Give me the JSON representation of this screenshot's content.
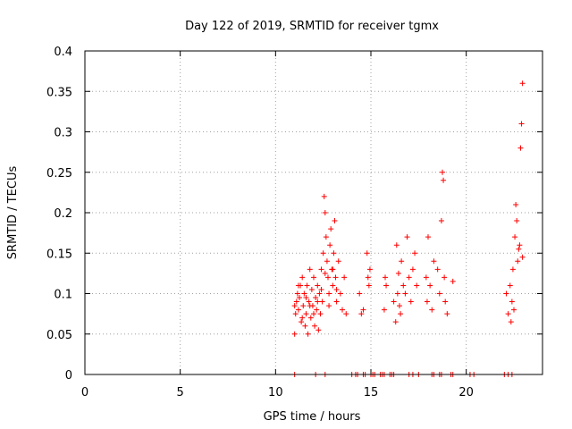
{
  "chart_data": {
    "type": "scatter",
    "title": "Day 122 of 2019, SRMTID for receiver tgmx",
    "xlabel": "GPS time / hours",
    "ylabel": "SRMTID / TECUs",
    "xlim": [
      0,
      24
    ],
    "ylim": [
      0,
      0.4
    ],
    "xticks": [
      0,
      5,
      10,
      15,
      20
    ],
    "xtick_labels": [
      "0",
      "5",
      "10",
      "15",
      "20"
    ],
    "yticks": [
      0,
      0.05,
      0.1,
      0.15,
      0.2,
      0.25,
      0.3,
      0.35,
      0.4
    ],
    "ytick_labels": [
      "0",
      "0.05",
      "0.1",
      "0.15",
      "0.2",
      "0.25",
      "0.3",
      "0.35",
      "0.4"
    ],
    "grid": true,
    "marker": "+",
    "color": "#ff0000",
    "series": [
      {
        "name": "SRMTID",
        "points": [
          [
            11.0,
            0.05
          ],
          [
            11.0,
            0.085
          ],
          [
            11.05,
            0.075
          ],
          [
            11.1,
            0.09
          ],
          [
            11.15,
            0.1
          ],
          [
            11.2,
            0.08
          ],
          [
            11.25,
            0.095
          ],
          [
            11.3,
            0.11
          ],
          [
            11.35,
            0.065
          ],
          [
            11.4,
            0.12
          ],
          [
            11.45,
            0.085
          ],
          [
            11.5,
            0.1
          ],
          [
            11.55,
            0.06
          ],
          [
            11.6,
            0.075
          ],
          [
            11.65,
            0.11
          ],
          [
            11.7,
            0.05
          ],
          [
            11.75,
            0.09
          ],
          [
            11.8,
            0.13
          ],
          [
            11.85,
            0.07
          ],
          [
            11.9,
            0.105
          ],
          [
            11.95,
            0.085
          ],
          [
            12.0,
            0.12
          ],
          [
            12.05,
            0.06
          ],
          [
            12.1,
            0.095
          ],
          [
            12.15,
            0.08
          ],
          [
            12.2,
            0.11
          ],
          [
            12.25,
            0.055
          ],
          [
            12.3,
            0.1
          ],
          [
            12.35,
            0.075
          ],
          [
            12.4,
            0.13
          ],
          [
            12.45,
            0.09
          ],
          [
            12.5,
            0.15
          ],
          [
            12.55,
            0.22
          ],
          [
            12.6,
            0.2
          ],
          [
            12.65,
            0.17
          ],
          [
            12.7,
            0.14
          ],
          [
            12.75,
            0.12
          ],
          [
            12.8,
            0.1
          ],
          [
            12.85,
            0.16
          ],
          [
            12.9,
            0.18
          ],
          [
            12.95,
            0.13
          ],
          [
            13.0,
            0.11
          ],
          [
            13.05,
            0.15
          ],
          [
            13.1,
            0.19
          ],
          [
            13.15,
            0.12
          ],
          [
            13.2,
            0.09
          ],
          [
            13.3,
            0.14
          ],
          [
            13.4,
            0.1
          ],
          [
            13.5,
            0.08
          ],
          [
            13.6,
            0.12
          ],
          [
            13.7,
            0.075
          ],
          [
            11.2,
            0.11
          ],
          [
            11.4,
            0.07
          ],
          [
            11.6,
            0.095
          ],
          [
            11.8,
            0.085
          ],
          [
            12.0,
            0.075
          ],
          [
            12.2,
            0.09
          ],
          [
            12.4,
            0.105
          ],
          [
            12.6,
            0.125
          ],
          [
            12.8,
            0.085
          ],
          [
            13.0,
            0.13
          ],
          [
            13.2,
            0.105
          ],
          [
            14.4,
            0.1
          ],
          [
            14.5,
            0.075
          ],
          [
            14.6,
            0.08
          ],
          [
            14.8,
            0.15
          ],
          [
            14.85,
            0.12
          ],
          [
            14.9,
            0.11
          ],
          [
            14.95,
            0.13
          ],
          [
            15.7,
            0.08
          ],
          [
            15.75,
            0.12
          ],
          [
            15.8,
            0.11
          ],
          [
            16.2,
            0.09
          ],
          [
            16.3,
            0.065
          ],
          [
            16.35,
            0.16
          ],
          [
            16.4,
            0.1
          ],
          [
            16.45,
            0.125
          ],
          [
            16.5,
            0.085
          ],
          [
            16.55,
            0.075
          ],
          [
            16.6,
            0.14
          ],
          [
            16.7,
            0.11
          ],
          [
            16.8,
            0.1
          ],
          [
            16.9,
            0.17
          ],
          [
            17.0,
            0.12
          ],
          [
            17.1,
            0.09
          ],
          [
            17.2,
            0.13
          ],
          [
            17.3,
            0.15
          ],
          [
            17.4,
            0.11
          ],
          [
            17.9,
            0.12
          ],
          [
            17.95,
            0.09
          ],
          [
            18.0,
            0.17
          ],
          [
            18.1,
            0.11
          ],
          [
            18.2,
            0.08
          ],
          [
            18.3,
            0.14
          ],
          [
            18.5,
            0.13
          ],
          [
            18.6,
            0.1
          ],
          [
            18.7,
            0.19
          ],
          [
            18.75,
            0.25
          ],
          [
            18.8,
            0.24
          ],
          [
            18.85,
            0.12
          ],
          [
            18.9,
            0.09
          ],
          [
            19.0,
            0.075
          ],
          [
            19.3,
            0.115
          ],
          [
            22.1,
            0.1
          ],
          [
            22.2,
            0.075
          ],
          [
            22.3,
            0.11
          ],
          [
            22.35,
            0.065
          ],
          [
            22.4,
            0.09
          ],
          [
            22.45,
            0.13
          ],
          [
            22.5,
            0.08
          ],
          [
            22.55,
            0.17
          ],
          [
            22.6,
            0.21
          ],
          [
            22.65,
            0.19
          ],
          [
            22.7,
            0.14
          ],
          [
            22.75,
            0.155
          ],
          [
            22.8,
            0.16
          ],
          [
            22.85,
            0.28
          ],
          [
            22.9,
            0.31
          ],
          [
            22.95,
            0.36
          ],
          [
            22.95,
            0.145
          ],
          [
            11.0,
            0.0
          ],
          [
            12.1,
            0.0
          ],
          [
            12.6,
            0.0
          ],
          [
            14.0,
            0.0
          ],
          [
            14.2,
            0.0
          ],
          [
            14.3,
            0.0
          ],
          [
            14.6,
            0.0
          ],
          [
            14.7,
            0.0
          ],
          [
            15.0,
            0.0
          ],
          [
            15.1,
            0.0
          ],
          [
            15.2,
            0.0
          ],
          [
            15.5,
            0.0
          ],
          [
            15.6,
            0.0
          ],
          [
            15.7,
            0.0
          ],
          [
            16.0,
            0.0
          ],
          [
            16.1,
            0.0
          ],
          [
            16.2,
            0.0
          ],
          [
            17.0,
            0.0
          ],
          [
            17.2,
            0.0
          ],
          [
            17.5,
            0.0
          ],
          [
            18.2,
            0.0
          ],
          [
            18.3,
            0.0
          ],
          [
            18.6,
            0.0
          ],
          [
            18.7,
            0.0
          ],
          [
            19.2,
            0.0
          ],
          [
            19.3,
            0.0
          ],
          [
            20.2,
            0.0
          ],
          [
            20.4,
            0.0
          ],
          [
            22.0,
            0.0
          ],
          [
            22.2,
            0.0
          ],
          [
            22.4,
            0.0
          ]
        ]
      }
    ]
  }
}
